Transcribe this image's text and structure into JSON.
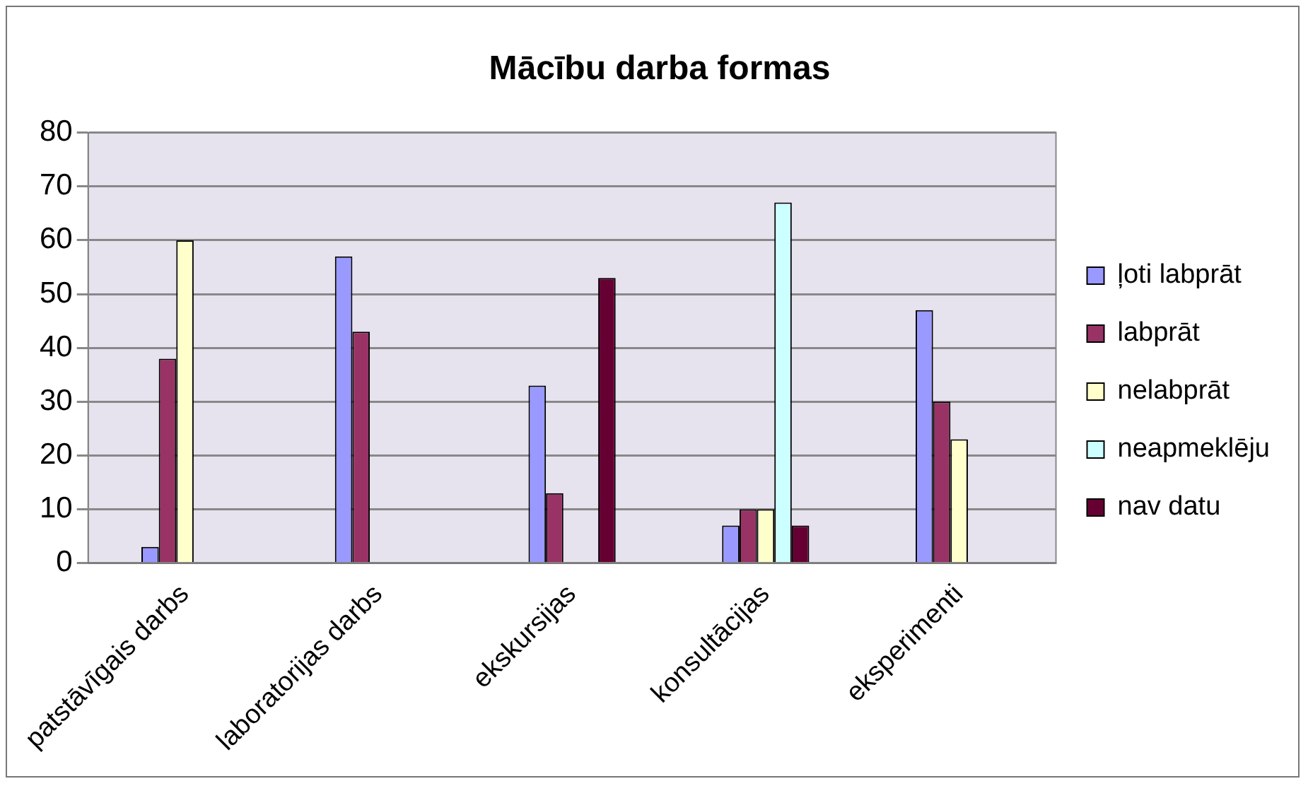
{
  "chart_data": {
    "type": "bar",
    "title": "Mācību darba formas",
    "categories": [
      "patstāvīgais darbs",
      "laboratorijas darbs",
      "ekskursijas",
      "konsultācijas",
      "eksperimenti"
    ],
    "series": [
      {
        "name": "ļoti labprāt",
        "color": "#9999ff",
        "values": [
          3,
          57,
          33,
          7,
          47
        ]
      },
      {
        "name": "labprāt",
        "color": "#993366",
        "values": [
          38,
          43,
          13,
          10,
          30
        ]
      },
      {
        "name": "nelabprāt",
        "color": "#ffffcc",
        "values": [
          60,
          null,
          null,
          10,
          23
        ]
      },
      {
        "name": "neapmeklēju",
        "color": "#ccffff",
        "values": [
          null,
          null,
          null,
          67,
          null
        ]
      },
      {
        "name": "nav datu",
        "color": "#660033",
        "values": [
          null,
          null,
          53,
          7,
          null
        ]
      }
    ],
    "ylim": [
      0,
      80
    ],
    "yticks": [
      0,
      10,
      20,
      30,
      40,
      50,
      60,
      70,
      80
    ],
    "grid": "y",
    "legend": "right"
  }
}
